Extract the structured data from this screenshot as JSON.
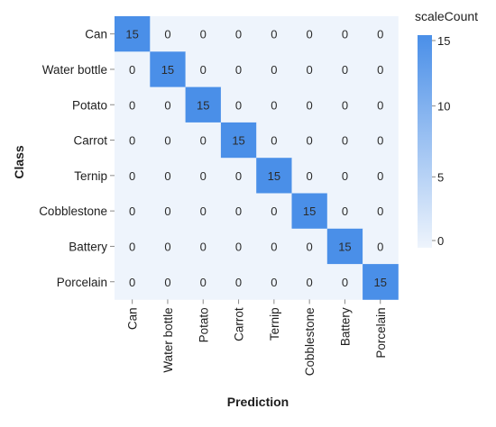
{
  "chart_data": {
    "type": "heatmap",
    "title": "",
    "xlabel": "Prediction",
    "ylabel": "Class",
    "x_categories": [
      "Can",
      "Water bottle",
      "Potato",
      "Carrot",
      "Ternip",
      "Cobblestone",
      "Battery",
      "Porcelain"
    ],
    "y_categories": [
      "Can",
      "Water bottle",
      "Potato",
      "Carrot",
      "Ternip",
      "Cobblestone",
      "Battery",
      "Porcelain"
    ],
    "values": [
      [
        15,
        0,
        0,
        0,
        0,
        0,
        0,
        0
      ],
      [
        0,
        15,
        0,
        0,
        0,
        0,
        0,
        0
      ],
      [
        0,
        0,
        15,
        0,
        0,
        0,
        0,
        0
      ],
      [
        0,
        0,
        0,
        15,
        0,
        0,
        0,
        0
      ],
      [
        0,
        0,
        0,
        0,
        15,
        0,
        0,
        0
      ],
      [
        0,
        0,
        0,
        0,
        0,
        15,
        0,
        0
      ],
      [
        0,
        0,
        0,
        0,
        0,
        0,
        15,
        0
      ],
      [
        0,
        0,
        0,
        0,
        0,
        0,
        0,
        15
      ]
    ],
    "legend": {
      "title": "scaleCount",
      "position": "right",
      "ticks": [
        0,
        5,
        10,
        15
      ],
      "range": [
        0,
        15
      ],
      "color_low": "#eef4fc",
      "color_high": "#4a8fe8"
    }
  }
}
